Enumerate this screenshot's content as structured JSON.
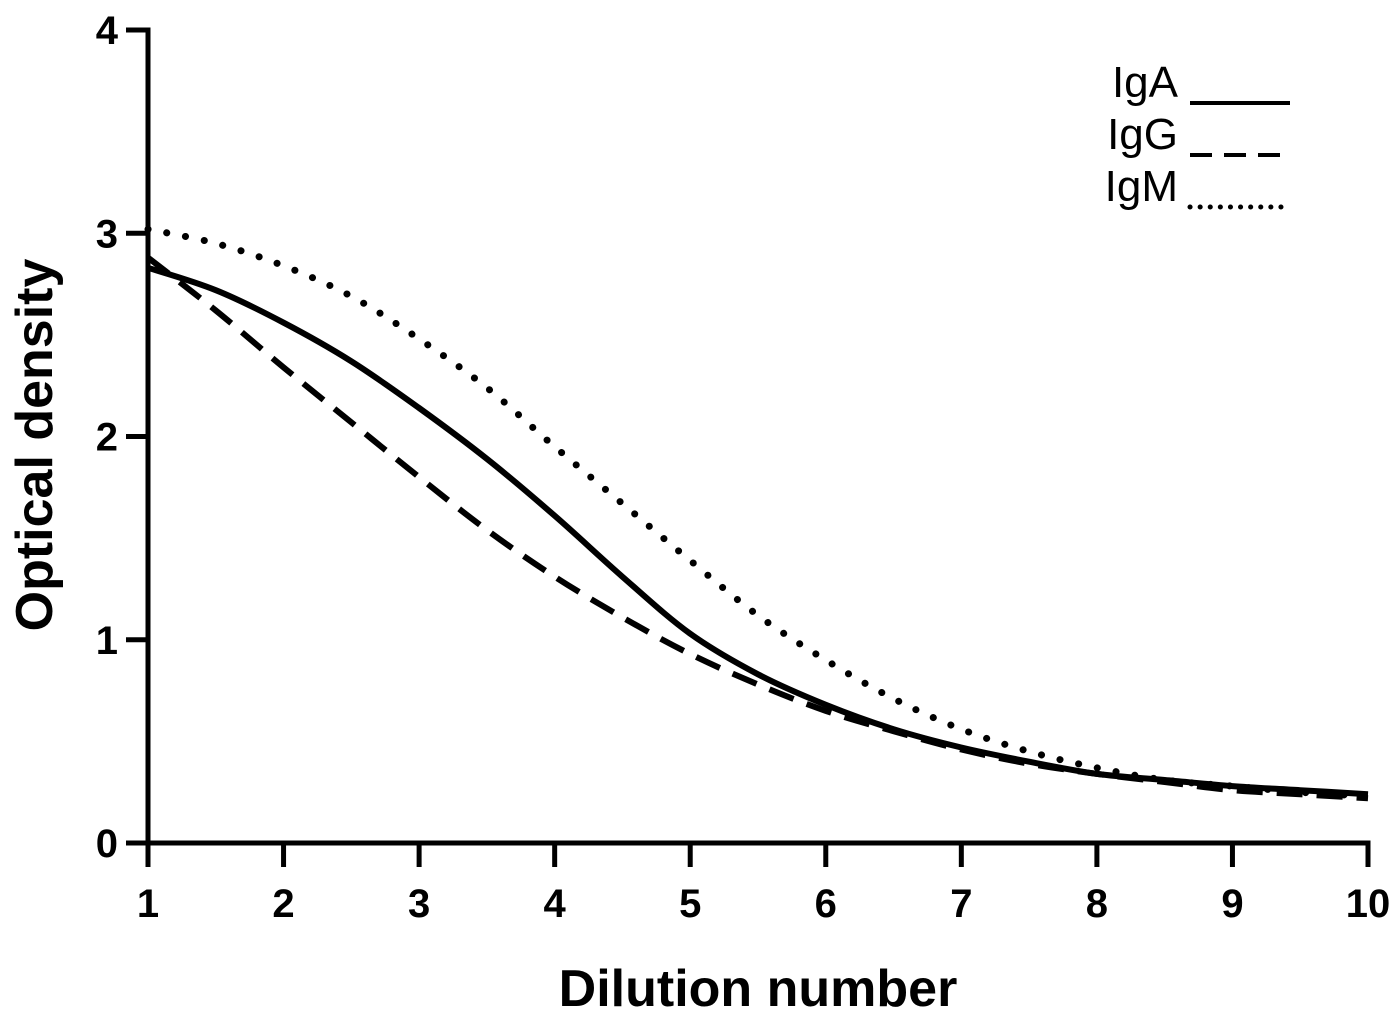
{
  "chart_data": {
    "type": "line",
    "xlabel": "Dilution number",
    "ylabel": "Optical density",
    "xlim": [
      1,
      10
    ],
    "ylim": [
      0,
      4
    ],
    "x_ticks": [
      1,
      2,
      3,
      4,
      5,
      6,
      7,
      8,
      9,
      10
    ],
    "y_ticks": [
      0,
      1,
      2,
      3,
      4
    ],
    "x_tick_labels": [
      "1",
      "2",
      "3",
      "4",
      "5",
      "6",
      "7",
      "8",
      "9",
      "10"
    ],
    "y_tick_labels": [
      "0",
      "1",
      "2",
      "3",
      "4"
    ],
    "grid": false,
    "legend_position": "top-right",
    "x": [
      1,
      1.5,
      2,
      2.5,
      3,
      3.5,
      4,
      4.5,
      5,
      5.5,
      6,
      6.5,
      7,
      7.5,
      8,
      8.5,
      9,
      9.5,
      10
    ],
    "series": [
      {
        "name": "IgA",
        "line_style": "solid",
        "color": "#000000",
        "values": [
          2.83,
          2.72,
          2.56,
          2.37,
          2.14,
          1.89,
          1.61,
          1.31,
          1.03,
          0.83,
          0.68,
          0.56,
          0.47,
          0.4,
          0.34,
          0.31,
          0.28,
          0.26,
          0.24
        ]
      },
      {
        "name": "IgG",
        "line_style": "dashed",
        "color": "#000000",
        "values": [
          2.88,
          2.62,
          2.34,
          2.07,
          1.8,
          1.54,
          1.31,
          1.11,
          0.93,
          0.78,
          0.65,
          0.55,
          0.46,
          0.39,
          0.34,
          0.3,
          0.26,
          0.24,
          0.22
        ]
      },
      {
        "name": "IgM",
        "line_style": "dotted",
        "color": "#000000",
        "values": [
          3.02,
          2.95,
          2.84,
          2.69,
          2.48,
          2.24,
          1.95,
          1.67,
          1.39,
          1.12,
          0.9,
          0.71,
          0.56,
          0.45,
          0.37,
          0.31,
          0.28,
          0.25,
          0.23
        ]
      }
    ]
  }
}
